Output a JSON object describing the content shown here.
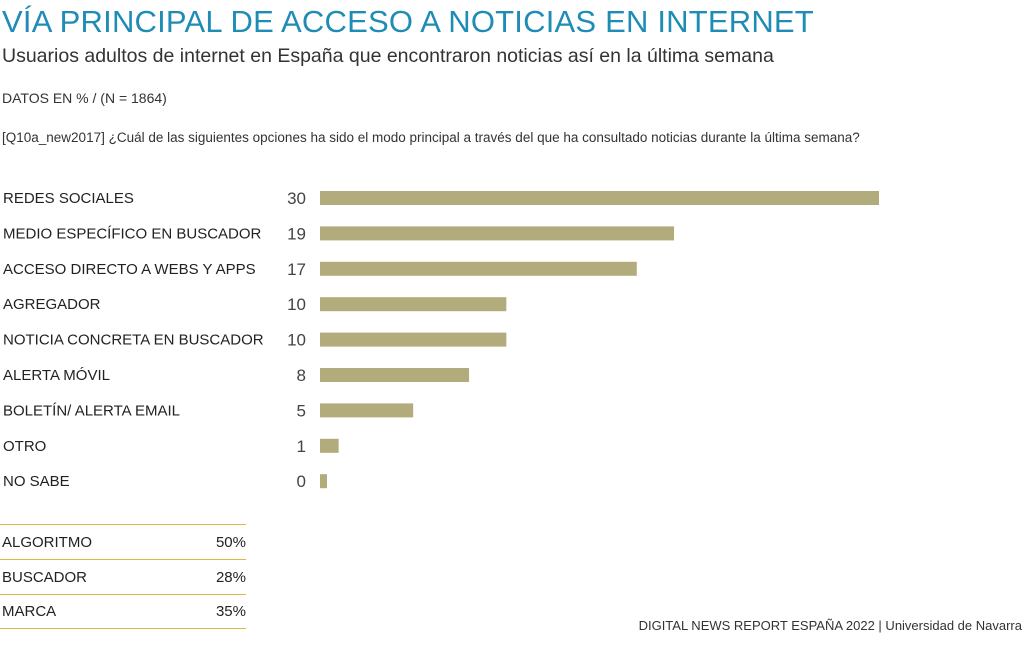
{
  "header": {
    "title": "VÍA PRINCIPAL DE ACCESO A NOTICIAS EN INTERNET",
    "subtitle": "Usuarios adultos de internet en España que encontraron noticias así en la última semana",
    "meta": "DATOS EN %  /  (N = 1864)",
    "question": "[Q10a_new2017] ¿Cuál de las siguientes opciones ha sido el modo principal a través del que ha consultado noticias durante la última semana?"
  },
  "chart_data": {
    "type": "bar",
    "orientation": "horizontal",
    "title": "VÍA PRINCIPAL DE ACCESO A NOTICIAS EN INTERNET",
    "xlabel": "",
    "ylabel": "",
    "xlim": [
      0,
      30
    ],
    "grid": false,
    "categories": [
      "REDES SOCIALES",
      "MEDIO ESPECÍFICO EN BUSCADOR",
      "ACCESO DIRECTO A WEBS Y APPS",
      "AGREGADOR",
      "NOTICIA CONCRETA EN BUSCADOR",
      "ALERTA MÓVIL",
      "BOLETÍN/ ALERTA EMAIL",
      "OTRO",
      "NO SABE"
    ],
    "values": [
      30,
      19,
      17,
      10,
      10,
      8,
      5,
      1,
      0
    ],
    "bar_color": "#b2ab7b"
  },
  "summary": [
    {
      "label": "ALGORITMO",
      "value": "50%"
    },
    {
      "label": "BUSCADOR",
      "value": "28%"
    },
    {
      "label": "MARCA",
      "value": "35%"
    }
  ],
  "footer": {
    "source": "DIGITAL NEWS REPORT ESPAÑA 2022 | Universidad de Navarra"
  }
}
